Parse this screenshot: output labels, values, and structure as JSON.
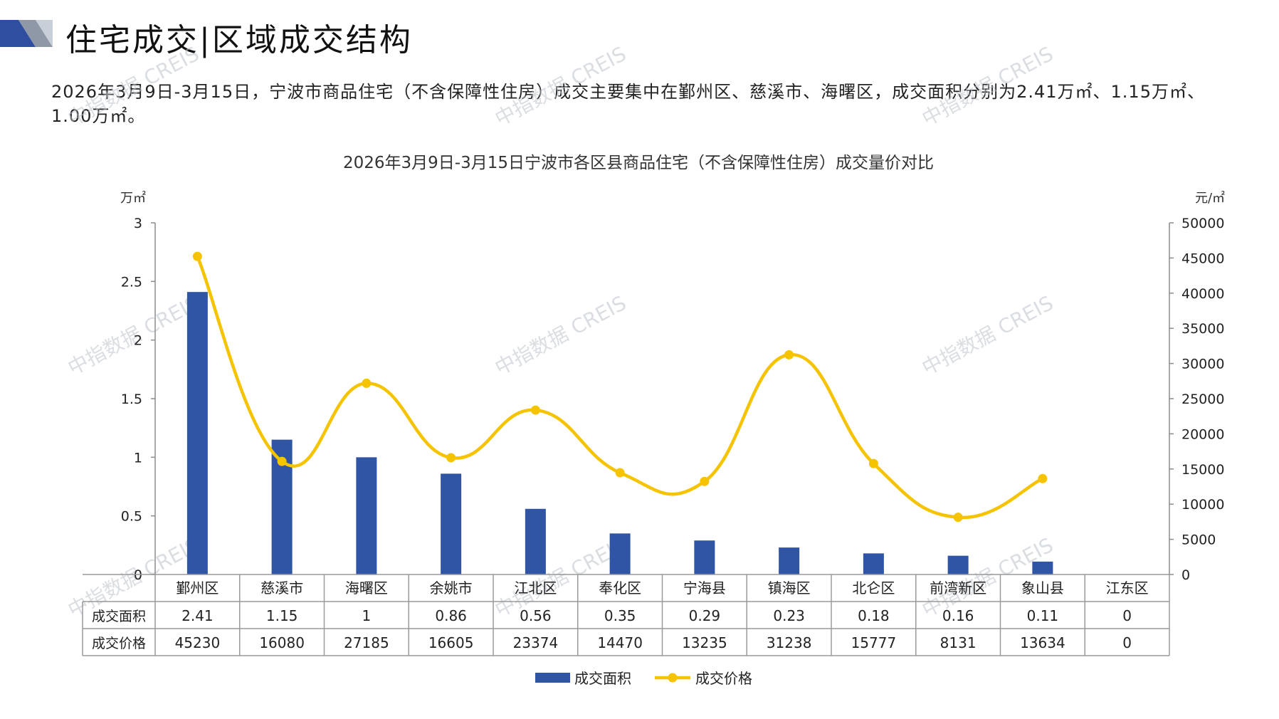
{
  "header": {
    "title": "住宅成交|区域成交结构"
  },
  "description": "2026年3月9日-3月15日，宁波市商品住宅（不含保障性住房）成交主要集中在鄞州区、慈溪市、海曙区，成交面积分别为2.41万㎡、1.15万㎡、1.00万㎡。",
  "watermark": "中指数据 CREIS",
  "colors": {
    "bar": "#2F55A4",
    "line": "#F5C300",
    "logo_blue": "#2F4EA0",
    "logo_gray": "#8E98A6"
  },
  "chart_data": {
    "type": "bar+line",
    "title": "2026年3月9日-3月15日宁波市各区县商品住宅（不含保障性住房）成交量价对比",
    "y_left_unit": "万㎡",
    "y_right_unit": "元/㎡",
    "y_left_ticks": [
      "3",
      "2.5",
      "2",
      "1.5",
      "1",
      "0.5",
      "0"
    ],
    "y_right_ticks": [
      "50000",
      "45000",
      "40000",
      "35000",
      "30000",
      "25000",
      "20000",
      "15000",
      "10000",
      "5000",
      "0"
    ],
    "ylim_left": [
      0,
      3
    ],
    "ylim_right": [
      0,
      50000
    ],
    "categories": [
      "鄞州区",
      "慈溪市",
      "海曙区",
      "余姚市",
      "江北区",
      "奉化区",
      "宁海县",
      "镇海区",
      "北仑区",
      "前湾新区",
      "象山县",
      "江东区"
    ],
    "series": [
      {
        "name": "成交面积",
        "type": "bar",
        "axis": "left",
        "values": [
          2.41,
          1.15,
          1,
          0.86,
          0.56,
          0.35,
          0.29,
          0.23,
          0.18,
          0.16,
          0.11,
          0
        ]
      },
      {
        "name": "成交价格",
        "type": "line",
        "axis": "right",
        "values": [
          45230,
          16080,
          27185,
          16605,
          23374,
          14470,
          13235,
          31238,
          15777,
          8131,
          13634,
          0
        ]
      }
    ],
    "table_rows": [
      {
        "label": "成交面积",
        "cells": [
          "2.41",
          "1.15",
          "1",
          "0.86",
          "0.56",
          "0.35",
          "0.29",
          "0.23",
          "0.18",
          "0.16",
          "0.11",
          "0"
        ]
      },
      {
        "label": "成交价格",
        "cells": [
          "45230",
          "16080",
          "27185",
          "16605",
          "23374",
          "14470",
          "13235",
          "31238",
          "15777",
          "8131",
          "13634",
          "0"
        ]
      }
    ],
    "legend": [
      "成交面积",
      "成交价格"
    ],
    "legend_position": "bottom",
    "grid": false
  }
}
